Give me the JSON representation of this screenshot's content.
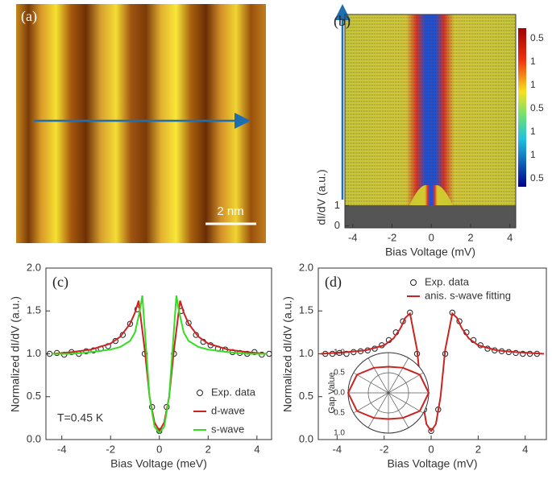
{
  "chart_data": [
    {
      "type": "image",
      "panel": "(a)",
      "scalebar": "2 nm"
    },
    {
      "type": "waterfall",
      "panel": "(b)",
      "xlabel": "Bias Voltage (mV)",
      "ylabel": "dI/dV (a.u.)",
      "xlim": [
        -4.4,
        4.3
      ],
      "xticks": [
        -4,
        -2,
        0,
        2,
        4
      ],
      "ylim": [
        -0.1,
        10.5
      ],
      "yticks": [
        0,
        1
      ],
      "colorbar_labels": [
        "0.5",
        "1",
        "1",
        "0.5",
        "1",
        "1",
        "0.5"
      ]
    },
    {
      "type": "line",
      "panel": "(c)",
      "xlabel": "Bias Voltage (meV)",
      "ylabel": "Normalized dI/dV (a.u.)",
      "annotation": "T=0.45 K",
      "xlim": [
        -4.65,
        4.6
      ],
      "xticks": [
        -4,
        -2,
        0,
        2,
        4
      ],
      "ylim": [
        0,
        2
      ],
      "yticks": [
        {
          "value": 0,
          "label": "0.0"
        },
        {
          "value": 0.5,
          "label": "0.5"
        },
        {
          "value": 1,
          "label": "1.0"
        },
        {
          "value": 1.5,
          "label": "1.5"
        },
        {
          "value": 2,
          "label": "2.0"
        }
      ],
      "series": [
        {
          "name": "Exp. data",
          "color": "#222222",
          "style": "markers",
          "x": [
            -4.5,
            -4.2,
            -3.9,
            -3.6,
            -3.3,
            -3.0,
            -2.7,
            -2.4,
            -2.1,
            -1.8,
            -1.5,
            -1.2,
            -0.9,
            -0.6,
            -0.3,
            0,
            0.3,
            0.6,
            0.9,
            1.2,
            1.5,
            1.8,
            2.1,
            2.4,
            2.7,
            3.0,
            3.3,
            3.6,
            3.9,
            4.2,
            4.5
          ],
          "values": [
            1.0,
            1.01,
            0.99,
            1.02,
            1.0,
            1.03,
            1.04,
            1.06,
            1.09,
            1.15,
            1.22,
            1.35,
            1.52,
            1.0,
            0.38,
            0.1,
            0.38,
            1.0,
            1.5,
            1.36,
            1.22,
            1.14,
            1.1,
            1.06,
            1.05,
            1.02,
            1.01,
            1.0,
            1.02,
            0.99,
            1.0
          ]
        },
        {
          "name": "d-wave",
          "color": "#cc2222",
          "style": "line",
          "x": [
            -4.4,
            -3.6,
            -2.8,
            -2.0,
            -1.6,
            -1.2,
            -1.0,
            -0.85,
            -0.6,
            -0.4,
            -0.2,
            0,
            0.2,
            0.4,
            0.6,
            0.85,
            1.0,
            1.2,
            1.6,
            2.0,
            2.8,
            3.6,
            4.4
          ],
          "values": [
            1.0,
            1.02,
            1.05,
            1.12,
            1.2,
            1.35,
            1.48,
            1.62,
            1.05,
            0.5,
            0.2,
            0.1,
            0.2,
            0.5,
            1.05,
            1.62,
            1.48,
            1.35,
            1.2,
            1.12,
            1.05,
            1.02,
            1.0
          ]
        },
        {
          "name": "s-wave",
          "color": "#33dd22",
          "style": "line",
          "x": [
            -4.4,
            -3.6,
            -2.8,
            -2.0,
            -1.6,
            -1.2,
            -1.0,
            -0.8,
            -0.7,
            -0.4,
            -0.2,
            0,
            0.2,
            0.4,
            0.7,
            0.8,
            1.0,
            1.2,
            1.6,
            2.0,
            2.8,
            3.6,
            4.4
          ],
          "values": [
            1.0,
            1.0,
            1.02,
            1.05,
            1.08,
            1.15,
            1.25,
            1.5,
            1.68,
            0.5,
            0.15,
            0.08,
            0.15,
            0.5,
            1.68,
            1.5,
            1.25,
            1.15,
            1.08,
            1.05,
            1.02,
            1.0,
            1.0
          ]
        }
      ]
    },
    {
      "type": "line",
      "panel": "(d)",
      "xlabel": "Bias Voltage (mV)",
      "ylabel": "Normalized dI/dV (a.u.)",
      "xlim": [
        -4.8,
        4.9
      ],
      "xticks": [
        -4,
        -2,
        0,
        2,
        4
      ],
      "ylim": [
        0,
        2
      ],
      "yticks": [
        {
          "value": 0,
          "label": "0.0"
        },
        {
          "value": 0.5,
          "label": "0.5"
        },
        {
          "value": 1,
          "label": "1.0"
        },
        {
          "value": 1.5,
          "label": "1.5"
        },
        {
          "value": 2,
          "label": "2.0"
        }
      ],
      "series": [
        {
          "name": "Exp. data",
          "color": "#222222",
          "style": "markers",
          "x": [
            -4.5,
            -4.2,
            -3.9,
            -3.6,
            -3.3,
            -3.0,
            -2.7,
            -2.4,
            -2.1,
            -1.8,
            -1.5,
            -1.2,
            -0.9,
            -0.6,
            -0.3,
            0,
            0.3,
            0.6,
            0.9,
            1.2,
            1.5,
            1.8,
            2.1,
            2.4,
            2.7,
            3.0,
            3.3,
            3.6,
            3.9,
            4.2,
            4.5
          ],
          "values": [
            1.0,
            1.0,
            1.01,
            1.0,
            1.02,
            1.03,
            1.04,
            1.06,
            1.1,
            1.16,
            1.25,
            1.38,
            1.48,
            1.0,
            0.35,
            0.1,
            0.35,
            1.0,
            1.48,
            1.38,
            1.25,
            1.16,
            1.1,
            1.06,
            1.04,
            1.03,
            1.02,
            1.01,
            1.0,
            1.0,
            1.0
          ]
        },
        {
          "name": "anis. s-wave fitting",
          "color": "#cc2222",
          "style": "line",
          "x": [
            -4.7,
            -3.6,
            -2.8,
            -2.0,
            -1.6,
            -1.3,
            -1.1,
            -0.9,
            -0.6,
            -0.4,
            -0.2,
            0,
            0.2,
            0.4,
            0.6,
            0.9,
            1.1,
            1.3,
            1.6,
            2.0,
            2.8,
            3.6,
            4.8
          ],
          "values": [
            1.0,
            1.02,
            1.04,
            1.1,
            1.18,
            1.3,
            1.42,
            1.47,
            1.05,
            0.5,
            0.18,
            0.1,
            0.18,
            0.5,
            1.05,
            1.47,
            1.42,
            1.3,
            1.18,
            1.1,
            1.04,
            1.02,
            1.0
          ]
        }
      ],
      "inset": {
        "ylabel": "Gap Value",
        "ticks": [
          {
            "value": 1,
            "label": "1.0"
          },
          {
            "value": 0.5,
            "label": "0.5"
          },
          {
            "value": 0,
            "label": "0.0"
          },
          {
            "value": 0.5,
            "label": "0.5"
          },
          {
            "value": 1,
            "label": "1.0"
          }
        ],
        "angles": [
          0,
          30,
          60,
          90,
          120,
          150,
          180,
          210,
          240,
          270,
          300,
          330
        ],
        "values": [
          1.0,
          0.9,
          0.72,
          0.65,
          0.72,
          0.9,
          1.0,
          0.9,
          0.72,
          0.65,
          0.72,
          0.9
        ]
      }
    }
  ]
}
